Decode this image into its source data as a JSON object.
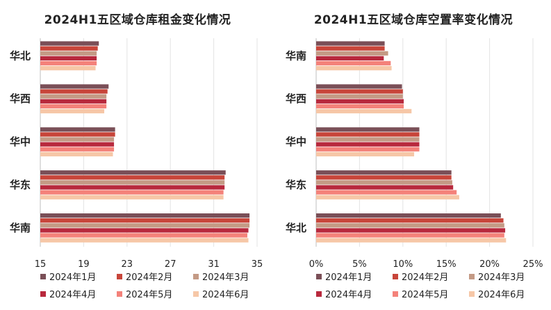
{
  "series_meta": [
    {
      "name": "2024年1月",
      "color": "#7a4f57"
    },
    {
      "name": "2024年2月",
      "color": "#c8453a"
    },
    {
      "name": "2024年3月",
      "color": "#c49a85"
    },
    {
      "name": "2024年4月",
      "color": "#b8293d"
    },
    {
      "name": "2024年5月",
      "color": "#f4827a"
    },
    {
      "name": "2024年6月",
      "color": "#f6c7a7"
    }
  ],
  "chart_data": [
    {
      "type": "bar",
      "orientation": "horizontal",
      "title": "2024H1五区域仓库租金变化情况",
      "categories": [
        "华北",
        "华西",
        "华中",
        "华东",
        "华南"
      ],
      "xlim": [
        15,
        35
      ],
      "xticks": [
        "15",
        "19",
        "23",
        "27",
        "31",
        "35"
      ],
      "xtick_values": [
        15,
        19,
        23,
        27,
        31,
        35
      ],
      "grid": true,
      "legend_position": "bottom",
      "series": [
        {
          "name": "2024年1月",
          "values": [
            20.4,
            21.3,
            21.9,
            32.1,
            34.3
          ]
        },
        {
          "name": "2024年2月",
          "values": [
            20.3,
            21.2,
            21.9,
            32.0,
            34.3
          ]
        },
        {
          "name": "2024年3月",
          "values": [
            20.2,
            21.1,
            21.8,
            32.0,
            34.3
          ]
        },
        {
          "name": "2024年4月",
          "values": [
            20.2,
            21.1,
            21.8,
            32.0,
            34.2
          ]
        },
        {
          "name": "2024年5月",
          "values": [
            20.2,
            21.1,
            21.8,
            31.9,
            34.1
          ]
        },
        {
          "name": "2024年6月",
          "values": [
            20.1,
            20.9,
            21.7,
            31.9,
            34.2
          ]
        }
      ]
    },
    {
      "type": "bar",
      "orientation": "horizontal",
      "title": "2024H1五区域仓库空置率变化情况",
      "categories": [
        "华南",
        "华西",
        "华中",
        "华东",
        "华北"
      ],
      "xlim": [
        0,
        25
      ],
      "xticks": [
        "0%",
        "5%",
        "10%",
        "15%",
        "20%",
        "25%"
      ],
      "xtick_values": [
        0,
        5,
        10,
        15,
        20,
        25
      ],
      "unit": "%",
      "grid": true,
      "legend_position": "bottom",
      "series": [
        {
          "name": "2024年1月",
          "values": [
            7.9,
            9.9,
            11.9,
            15.6,
            21.3
          ]
        },
        {
          "name": "2024年2月",
          "values": [
            7.9,
            10.0,
            11.9,
            15.6,
            21.6
          ]
        },
        {
          "name": "2024年3月",
          "values": [
            8.3,
            10.0,
            11.9,
            15.7,
            21.7
          ]
        },
        {
          "name": "2024年4月",
          "values": [
            7.8,
            10.1,
            11.9,
            15.8,
            21.8
          ]
        },
        {
          "name": "2024年5月",
          "values": [
            8.6,
            10.1,
            11.9,
            16.2,
            21.7
          ]
        },
        {
          "name": "2024年6月",
          "values": [
            8.7,
            11.0,
            11.3,
            16.5,
            21.9
          ]
        }
      ]
    }
  ]
}
